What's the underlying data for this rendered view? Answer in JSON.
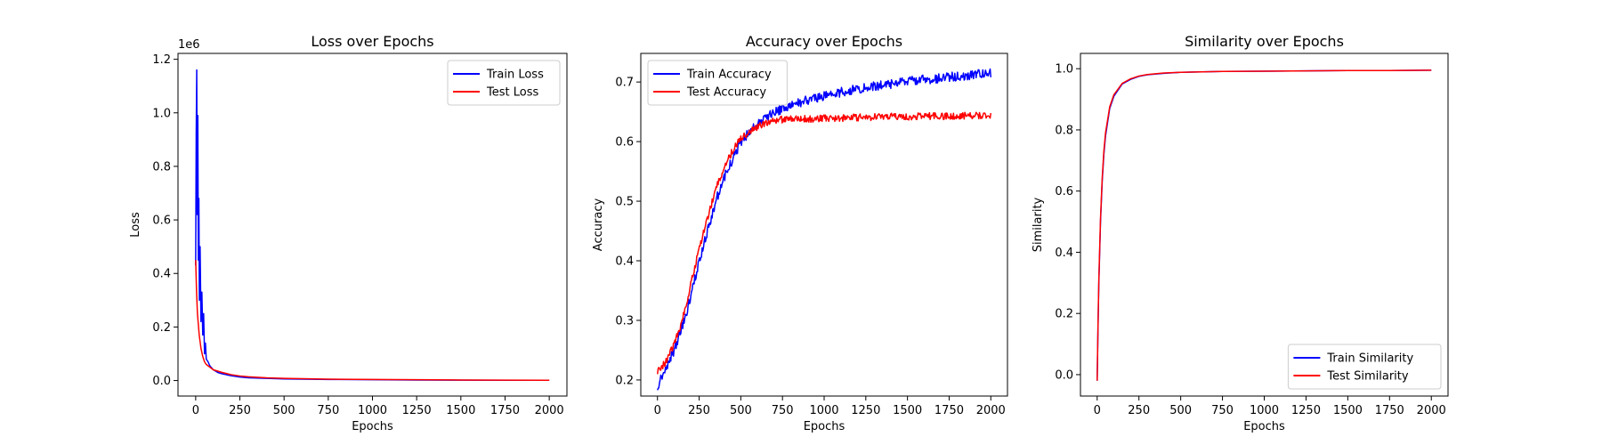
{
  "chart_data": [
    {
      "type": "line",
      "title": "Loss over Epochs",
      "xlabel": "Epochs",
      "ylabel": "Loss",
      "y_offset_text": "1e6",
      "xlim": [
        -100,
        2100
      ],
      "ylim": [
        -0.058,
        1.222
      ],
      "xticks": [
        0,
        250,
        500,
        750,
        1000,
        1250,
        1500,
        1750,
        2000
      ],
      "xtick_labels": [
        "0",
        "250",
        "500",
        "750",
        "1000",
        "1250",
        "1500",
        "1750",
        "2000"
      ],
      "yticks": [
        0.0,
        0.2,
        0.4,
        0.6,
        0.8,
        1.0,
        1.2
      ],
      "ytick_labels": [
        "0.0",
        "0.2",
        "0.4",
        "0.6",
        "0.8",
        "1.0",
        "1.2"
      ],
      "legend_position": "top-right",
      "grid": false,
      "series": [
        {
          "name": "Train Loss",
          "color": "#0000ff",
          "x": [
            0,
            3,
            6,
            9,
            12,
            15,
            18,
            21,
            25,
            30,
            35,
            40,
            45,
            50,
            55,
            60,
            70,
            80,
            100,
            125,
            150,
            200,
            250,
            300,
            400,
            500,
            750,
            1000,
            1250,
            1500,
            1750,
            2000
          ],
          "y": [
            0.43,
            0.92,
            1.16,
            0.62,
            0.99,
            0.45,
            0.68,
            0.3,
            0.5,
            0.22,
            0.33,
            0.17,
            0.25,
            0.1,
            0.14,
            0.08,
            0.07,
            0.055,
            0.04,
            0.03,
            0.025,
            0.018,
            0.013,
            0.01,
            0.008,
            0.006,
            0.004,
            0.003,
            0.002,
            0.0015,
            0.001,
            0.001
          ]
        },
        {
          "name": "Test Loss",
          "color": "#ff0000",
          "x": [
            0,
            5,
            10,
            20,
            30,
            40,
            50,
            60,
            80,
            100,
            150,
            200,
            250,
            300,
            400,
            500,
            750,
            1000,
            1250,
            1500,
            1750,
            2000
          ],
          "y": [
            0.45,
            0.33,
            0.25,
            0.17,
            0.12,
            0.09,
            0.07,
            0.06,
            0.05,
            0.04,
            0.03,
            0.022,
            0.017,
            0.014,
            0.01,
            0.008,
            0.005,
            0.004,
            0.003,
            0.002,
            0.0015,
            0.001
          ]
        }
      ]
    },
    {
      "type": "line",
      "title": "Accuracy over Epochs",
      "xlabel": "Epochs",
      "ylabel": "Accuracy",
      "xlim": [
        -100,
        2100
      ],
      "ylim": [
        0.173,
        0.748
      ],
      "xticks": [
        0,
        250,
        500,
        750,
        1000,
        1250,
        1500,
        1750,
        2000
      ],
      "xtick_labels": [
        "0",
        "250",
        "500",
        "750",
        "1000",
        "1250",
        "1500",
        "1750",
        "2000"
      ],
      "yticks": [
        0.2,
        0.3,
        0.4,
        0.5,
        0.6,
        0.7
      ],
      "ytick_labels": [
        "0.2",
        "0.3",
        "0.4",
        "0.5",
        "0.6",
        "0.7"
      ],
      "legend_position": "top-left",
      "grid": false,
      "series": [
        {
          "name": "Train Accuracy",
          "color": "#0000ff",
          "noise": 0.008,
          "x": [
            0,
            50,
            100,
            150,
            200,
            250,
            300,
            350,
            400,
            450,
            500,
            550,
            600,
            650,
            700,
            750,
            800,
            900,
            1000,
            1100,
            1200,
            1300,
            1400,
            1500,
            1600,
            1700,
            1800,
            1900,
            2000
          ],
          "y": [
            0.19,
            0.22,
            0.25,
            0.29,
            0.34,
            0.4,
            0.45,
            0.5,
            0.54,
            0.57,
            0.6,
            0.615,
            0.63,
            0.64,
            0.65,
            0.655,
            0.66,
            0.67,
            0.677,
            0.683,
            0.688,
            0.693,
            0.697,
            0.701,
            0.704,
            0.707,
            0.71,
            0.712,
            0.714
          ]
        },
        {
          "name": "Test Accuracy",
          "color": "#ff0000",
          "noise": 0.006,
          "x": [
            0,
            50,
            100,
            150,
            200,
            250,
            300,
            350,
            400,
            450,
            500,
            550,
            600,
            650,
            700,
            750,
            800,
            900,
            1000,
            1250,
            1500,
            1750,
            2000
          ],
          "y": [
            0.215,
            0.23,
            0.26,
            0.3,
            0.36,
            0.42,
            0.47,
            0.52,
            0.555,
            0.585,
            0.605,
            0.615,
            0.625,
            0.632,
            0.635,
            0.637,
            0.638,
            0.638,
            0.639,
            0.641,
            0.642,
            0.643,
            0.645
          ]
        }
      ]
    },
    {
      "type": "line",
      "title": "Similarity over Epochs",
      "xlabel": "Epochs",
      "ylabel": "Similarity",
      "xlim": [
        -100,
        2100
      ],
      "ylim": [
        -0.07,
        1.05
      ],
      "xticks": [
        0,
        250,
        500,
        750,
        1000,
        1250,
        1500,
        1750,
        2000
      ],
      "xtick_labels": [
        "0",
        "250",
        "500",
        "750",
        "1000",
        "1250",
        "1500",
        "1750",
        "2000"
      ],
      "yticks": [
        0.0,
        0.2,
        0.4,
        0.6,
        0.8,
        1.0
      ],
      "ytick_labels": [
        "0.0",
        "0.2",
        "0.4",
        "0.6",
        "0.8",
        "1.0"
      ],
      "legend_position": "bottom-right",
      "grid": false,
      "series": [
        {
          "name": "Train Similarity",
          "color": "#0000ff",
          "x": [
            0,
            5,
            10,
            20,
            30,
            40,
            50,
            75,
            100,
            150,
            200,
            250,
            300,
            400,
            500,
            750,
            1000,
            1250,
            1500,
            1750,
            2000
          ],
          "y": [
            -0.02,
            0.15,
            0.3,
            0.5,
            0.63,
            0.72,
            0.78,
            0.87,
            0.91,
            0.95,
            0.965,
            0.975,
            0.98,
            0.985,
            0.988,
            0.991,
            0.992,
            0.993,
            0.994,
            0.994,
            0.995
          ]
        },
        {
          "name": "Test Similarity",
          "color": "#ff0000",
          "x": [
            0,
            5,
            10,
            20,
            30,
            40,
            50,
            75,
            100,
            150,
            200,
            250,
            300,
            400,
            500,
            750,
            1000,
            1250,
            1500,
            1750,
            2000
          ],
          "y": [
            -0.02,
            0.16,
            0.31,
            0.51,
            0.64,
            0.73,
            0.79,
            0.875,
            0.915,
            0.952,
            0.967,
            0.976,
            0.981,
            0.986,
            0.988,
            0.991,
            0.992,
            0.993,
            0.994,
            0.994,
            0.995
          ]
        }
      ]
    }
  ]
}
